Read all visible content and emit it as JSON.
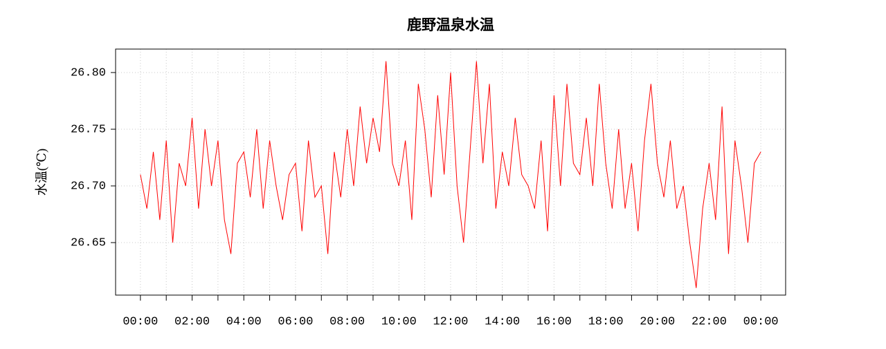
{
  "chart_data": {
    "type": "line",
    "title": "鹿野温泉水温",
    "y_label": "水温(℃)",
    "x": [
      0,
      0.25,
      0.5,
      0.75,
      1,
      1.25,
      1.5,
      1.75,
      2,
      2.25,
      2.5,
      2.75,
      3,
      3.25,
      3.5,
      3.75,
      4,
      4.25,
      4.5,
      4.75,
      5,
      5.25,
      5.5,
      5.75,
      6,
      6.25,
      6.5,
      6.75,
      7,
      7.25,
      7.5,
      7.75,
      8,
      8.25,
      8.5,
      8.75,
      9,
      9.25,
      9.5,
      9.75,
      10,
      10.25,
      10.5,
      10.75,
      11,
      11.25,
      11.5,
      11.75,
      12,
      12.25,
      12.5,
      12.75,
      13,
      13.25,
      13.5,
      13.75,
      14,
      14.25,
      14.5,
      14.75,
      15,
      15.25,
      15.5,
      15.75,
      16,
      16.25,
      16.5,
      16.75,
      17,
      17.25,
      17.5,
      17.75,
      18,
      18.25,
      18.5,
      18.75,
      19,
      19.25,
      19.5,
      19.75,
      20,
      20.25,
      20.5,
      20.75,
      21,
      21.25,
      21.5,
      21.75,
      22,
      22.25,
      22.5,
      22.75,
      23,
      23.25,
      23.5,
      23.75,
      24
    ],
    "series": [
      {
        "color": "#ff0000",
        "values": [
          26.71,
          26.68,
          26.73,
          26.67,
          26.74,
          26.65,
          26.72,
          26.7,
          26.76,
          26.68,
          26.75,
          26.7,
          26.74,
          26.67,
          26.64,
          26.72,
          26.73,
          26.69,
          26.75,
          26.68,
          26.74,
          26.7,
          26.67,
          26.71,
          26.72,
          26.66,
          26.74,
          26.69,
          26.7,
          26.64,
          26.73,
          26.69,
          26.75,
          26.7,
          26.77,
          26.72,
          26.76,
          26.73,
          26.81,
          26.72,
          26.7,
          26.74,
          26.67,
          26.79,
          26.75,
          26.69,
          26.78,
          26.71,
          26.8,
          26.7,
          26.65,
          26.73,
          26.81,
          26.72,
          26.79,
          26.68,
          26.73,
          26.7,
          26.76,
          26.71,
          26.7,
          26.68,
          26.74,
          26.66,
          26.78,
          26.7,
          26.79,
          26.72,
          26.71,
          26.76,
          26.7,
          26.79,
          26.72,
          26.68,
          26.75,
          26.68,
          26.72,
          26.66,
          26.74,
          26.79,
          26.72,
          26.69,
          26.74,
          26.68,
          26.7,
          26.65,
          26.61,
          26.68,
          26.72,
          26.67,
          26.77,
          26.64,
          26.74,
          26.7,
          26.65,
          26.72,
          26.73
        ]
      }
    ],
    "xlim": [
      -0.96,
      24.96
    ],
    "xticks": [
      {
        "value": 0,
        "label": "00:00"
      },
      {
        "value": 2,
        "label": "02:00"
      },
      {
        "value": 4,
        "label": "04:00"
      },
      {
        "value": 6,
        "label": "06:00"
      },
      {
        "value": 8,
        "label": "08:00"
      },
      {
        "value": 10,
        "label": "10:00"
      },
      {
        "value": 12,
        "label": "12:00"
      },
      {
        "value": 14,
        "label": "14:00"
      },
      {
        "value": 16,
        "label": "16:00"
      },
      {
        "value": 18,
        "label": "18:00"
      },
      {
        "value": 20,
        "label": "20:00"
      },
      {
        "value": 22,
        "label": "22:00"
      },
      {
        "value": 24,
        "label": "00:00"
      }
    ],
    "xminor_ticks": [
      1,
      3,
      5,
      7,
      9,
      11,
      13,
      15,
      17,
      19,
      21,
      23
    ],
    "ylim": [
      26.6037,
      26.8207
    ],
    "yticks": [
      {
        "value": 26.65,
        "label": "26.65"
      },
      {
        "value": 26.7,
        "label": "26.70"
      },
      {
        "value": 26.75,
        "label": "26.75"
      },
      {
        "value": 26.8,
        "label": "26.80"
      }
    ],
    "grid": true
  }
}
